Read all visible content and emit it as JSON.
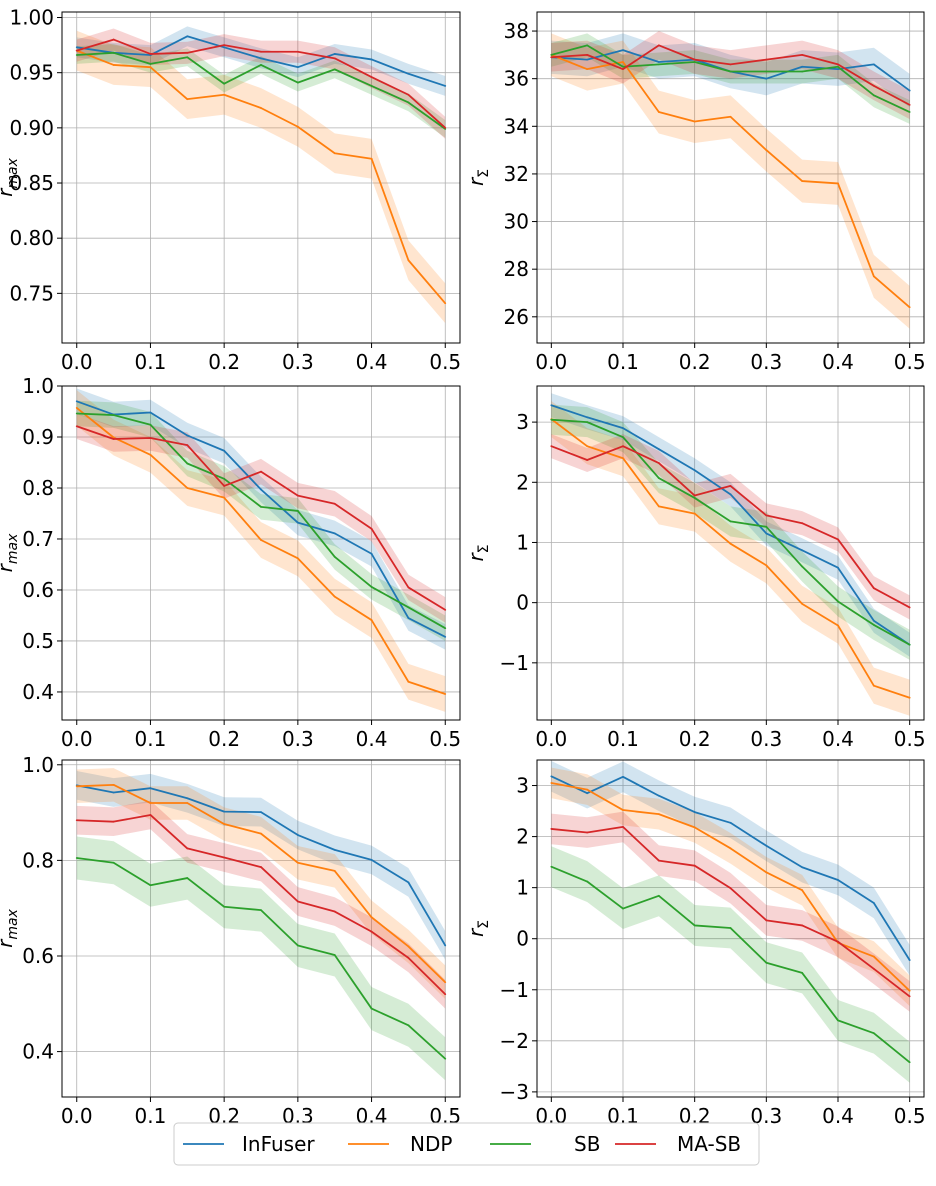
{
  "legend": {
    "entries": [
      {
        "label": "InFuser",
        "color": "#1f77b4"
      },
      {
        "label": "NDP",
        "color": "#ff7f0e"
      },
      {
        "label": "SB",
        "color": "#2ca02c"
      },
      {
        "label": "MA-SB",
        "color": "#d62728"
      }
    ],
    "location": "bottom-center"
  },
  "chart_data": [
    {
      "type": "line",
      "panel": "row1-left",
      "title": "",
      "xlabel": "",
      "ylabel_base": "r",
      "ylabel_sub": "max",
      "x": [
        0.0,
        0.05,
        0.1,
        0.15,
        0.2,
        0.25,
        0.3,
        0.35,
        0.4,
        0.45,
        0.5
      ],
      "xlim": [
        -0.02,
        0.52
      ],
      "ylim": [
        0.705,
        1.005
      ],
      "xticks": [
        "0.0",
        "0.1",
        "0.2",
        "0.3",
        "0.4",
        "0.5"
      ],
      "yticks": [
        "0.75",
        "0.80",
        "0.85",
        "0.90",
        "0.95",
        "1.00"
      ],
      "series": [
        {
          "name": "InFuser",
          "values": [
            0.973,
            0.968,
            0.966,
            0.983,
            0.973,
            0.963,
            0.955,
            0.967,
            0.962,
            0.949,
            0.938
          ],
          "band": 0.009
        },
        {
          "name": "NDP",
          "values": [
            0.97,
            0.957,
            0.955,
            0.926,
            0.93,
            0.918,
            0.901,
            0.877,
            0.872,
            0.78,
            0.741
          ],
          "band": 0.018
        },
        {
          "name": "SB",
          "values": [
            0.966,
            0.968,
            0.958,
            0.964,
            0.94,
            0.957,
            0.941,
            0.953,
            0.938,
            0.923,
            0.899
          ],
          "band": 0.008
        },
        {
          "name": "MA-SB",
          "values": [
            0.97,
            0.98,
            0.967,
            0.968,
            0.975,
            0.969,
            0.969,
            0.963,
            0.946,
            0.93,
            0.9
          ],
          "band": 0.01
        }
      ]
    },
    {
      "type": "line",
      "panel": "row1-right",
      "title": "",
      "xlabel": "",
      "ylabel_base": "r",
      "ylabel_sub": "Σ",
      "x": [
        0.0,
        0.05,
        0.1,
        0.15,
        0.2,
        0.25,
        0.3,
        0.35,
        0.4,
        0.45,
        0.5
      ],
      "xlim": [
        -0.02,
        0.52
      ],
      "ylim": [
        24.9,
        38.8
      ],
      "xticks": [
        "0.0",
        "0.1",
        "0.2",
        "0.3",
        "0.4",
        "0.5"
      ],
      "yticks": [
        "26",
        "28",
        "30",
        "32",
        "34",
        "36",
        "38"
      ],
      "series": [
        {
          "name": "InFuser",
          "values": [
            36.9,
            36.8,
            37.2,
            36.7,
            36.8,
            36.3,
            36.0,
            36.5,
            36.4,
            36.6,
            35.5
          ],
          "band": 0.7
        },
        {
          "name": "NDP",
          "values": [
            37.0,
            36.4,
            36.7,
            34.6,
            34.2,
            34.4,
            33.0,
            31.7,
            31.6,
            27.7,
            26.4
          ],
          "band": 0.9
        },
        {
          "name": "SB",
          "values": [
            37.0,
            37.4,
            36.5,
            36.6,
            36.7,
            36.3,
            36.3,
            36.3,
            36.5,
            35.3,
            34.6
          ],
          "band": 0.5
        },
        {
          "name": "MA-SB",
          "values": [
            36.9,
            37.0,
            36.4,
            37.4,
            36.8,
            36.6,
            36.8,
            37.0,
            36.6,
            35.7,
            34.9
          ],
          "band": 0.6
        }
      ]
    },
    {
      "type": "line",
      "panel": "row2-left",
      "title": "",
      "xlabel": "",
      "ylabel_base": "r",
      "ylabel_sub": "max",
      "x": [
        0.0,
        0.05,
        0.1,
        0.15,
        0.2,
        0.25,
        0.3,
        0.35,
        0.4,
        0.45,
        0.5
      ],
      "xlim": [
        -0.02,
        0.52
      ],
      "ylim": [
        0.345,
        1.0
      ],
      "xticks": [
        "0.0",
        "0.1",
        "0.2",
        "0.3",
        "0.4",
        "0.5"
      ],
      "yticks": [
        "0.4",
        "0.5",
        "0.6",
        "0.7",
        "0.8",
        "0.9",
        "1.0"
      ],
      "series": [
        {
          "name": "InFuser",
          "values": [
            0.97,
            0.944,
            0.948,
            0.903,
            0.873,
            0.797,
            0.732,
            0.711,
            0.671,
            0.545,
            0.508
          ],
          "band": 0.025
        },
        {
          "name": "NDP",
          "values": [
            0.957,
            0.899,
            0.865,
            0.8,
            0.781,
            0.698,
            0.662,
            0.587,
            0.541,
            0.42,
            0.396
          ],
          "band": 0.035
        },
        {
          "name": "SB",
          "values": [
            0.946,
            0.943,
            0.924,
            0.848,
            0.818,
            0.763,
            0.755,
            0.665,
            0.606,
            0.566,
            0.525
          ],
          "band": 0.025
        },
        {
          "name": "MA-SB",
          "values": [
            0.921,
            0.896,
            0.898,
            0.884,
            0.804,
            0.832,
            0.785,
            0.769,
            0.72,
            0.605,
            0.561
          ],
          "band": 0.025
        }
      ]
    },
    {
      "type": "line",
      "panel": "row2-right",
      "title": "",
      "xlabel": "",
      "ylabel_base": "r",
      "ylabel_sub": "Σ",
      "x": [
        0.0,
        0.05,
        0.1,
        0.15,
        0.2,
        0.25,
        0.3,
        0.35,
        0.4,
        0.45,
        0.5
      ],
      "xlim": [
        -0.02,
        0.52
      ],
      "ylim": [
        -1.95,
        3.6
      ],
      "xticks": [
        "0.0",
        "0.1",
        "0.2",
        "0.3",
        "0.4",
        "0.5"
      ],
      "yticks": [
        "−1",
        "0",
        "1",
        "2",
        "3"
      ],
      "series": [
        {
          "name": "InFuser",
          "values": [
            3.28,
            3.08,
            2.9,
            2.55,
            2.2,
            1.8,
            1.15,
            0.87,
            0.58,
            -0.3,
            -0.7
          ],
          "band": 0.2
        },
        {
          "name": "NDP",
          "values": [
            3.05,
            2.6,
            2.4,
            1.6,
            1.48,
            0.98,
            0.62,
            -0.02,
            -0.38,
            -1.38,
            -1.58
          ],
          "band": 0.3
        },
        {
          "name": "SB",
          "values": [
            3.04,
            3.0,
            2.75,
            2.07,
            1.74,
            1.35,
            1.26,
            0.6,
            0.02,
            -0.37,
            -0.7
          ],
          "band": 0.25
        },
        {
          "name": "MA-SB",
          "values": [
            2.6,
            2.37,
            2.6,
            2.32,
            1.78,
            1.94,
            1.45,
            1.32,
            1.05,
            0.24,
            -0.08
          ],
          "band": 0.2
        }
      ]
    },
    {
      "type": "line",
      "panel": "row3-left",
      "title": "",
      "xlabel": "",
      "ylabel_base": "r",
      "ylabel_sub": "max",
      "x": [
        0.0,
        0.05,
        0.1,
        0.15,
        0.2,
        0.25,
        0.3,
        0.35,
        0.4,
        0.45,
        0.5
      ],
      "xlim": [
        -0.02,
        0.52
      ],
      "ylim": [
        0.305,
        1.01
      ],
      "xticks": [
        "0.0",
        "0.1",
        "0.2",
        "0.3",
        "0.4",
        "0.5"
      ],
      "yticks": [
        "0.4",
        "0.6",
        "0.8",
        "1.0"
      ],
      "series": [
        {
          "name": "InFuser",
          "values": [
            0.957,
            0.942,
            0.951,
            0.93,
            0.902,
            0.901,
            0.853,
            0.822,
            0.801,
            0.754,
            0.622
          ],
          "band": 0.03
        },
        {
          "name": "NDP",
          "values": [
            0.955,
            0.958,
            0.92,
            0.92,
            0.876,
            0.856,
            0.795,
            0.778,
            0.681,
            0.62,
            0.545
          ],
          "band": 0.035
        },
        {
          "name": "SB",
          "values": [
            0.805,
            0.795,
            0.748,
            0.763,
            0.703,
            0.696,
            0.622,
            0.602,
            0.49,
            0.455,
            0.385
          ],
          "band": 0.045
        },
        {
          "name": "MA-SB",
          "values": [
            0.884,
            0.881,
            0.895,
            0.825,
            0.806,
            0.786,
            0.714,
            0.693,
            0.651,
            0.596,
            0.52
          ],
          "band": 0.03
        }
      ]
    },
    {
      "type": "line",
      "panel": "row3-right",
      "title": "",
      "xlabel": "",
      "ylabel_base": "r",
      "ylabel_sub": "Σ",
      "x": [
        0.0,
        0.05,
        0.1,
        0.15,
        0.2,
        0.25,
        0.3,
        0.35,
        0.4,
        0.45,
        0.5
      ],
      "xlim": [
        -0.02,
        0.52
      ],
      "ylim": [
        -3.1,
        3.5
      ],
      "xticks": [
        "0.0",
        "0.1",
        "0.2",
        "0.3",
        "0.4",
        "0.5"
      ],
      "yticks": [
        "−3",
        "−2",
        "−1",
        "0",
        "1",
        "2",
        "3"
      ],
      "series": [
        {
          "name": "InFuser",
          "values": [
            3.18,
            2.85,
            3.17,
            2.8,
            2.48,
            2.27,
            1.82,
            1.4,
            1.15,
            0.7,
            -0.42
          ],
          "band": 0.3
        },
        {
          "name": "NDP",
          "values": [
            3.05,
            2.92,
            2.52,
            2.44,
            2.18,
            1.77,
            1.3,
            0.95,
            -0.08,
            -0.35,
            -1.02
          ],
          "band": 0.3
        },
        {
          "name": "SB",
          "values": [
            1.41,
            1.12,
            0.59,
            0.84,
            0.26,
            0.21,
            -0.47,
            -0.67,
            -1.6,
            -1.85,
            -2.42
          ],
          "band": 0.4
        },
        {
          "name": "MA-SB",
          "values": [
            2.15,
            2.08,
            2.19,
            1.53,
            1.43,
            0.99,
            0.36,
            0.26,
            -0.06,
            -0.59,
            -1.13
          ],
          "band": 0.3
        }
      ]
    }
  ]
}
